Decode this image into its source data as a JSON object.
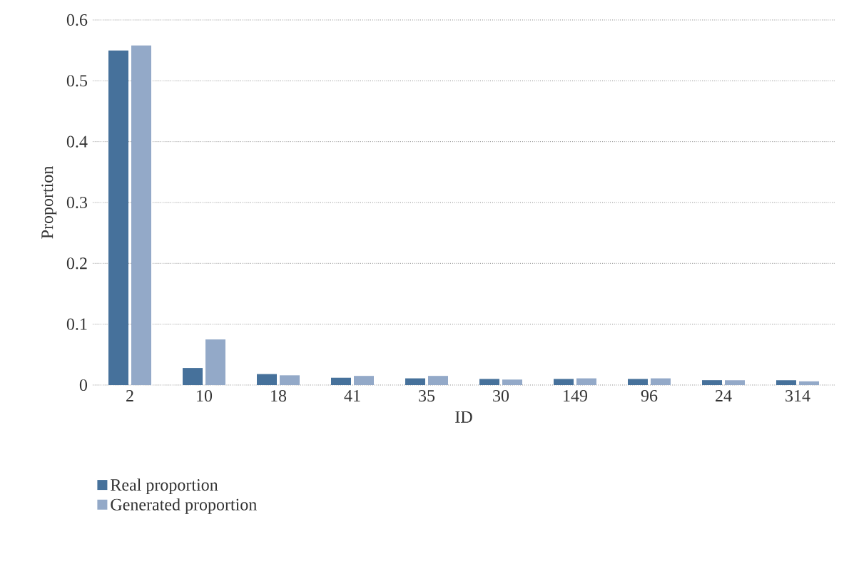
{
  "chart_data": {
    "type": "bar",
    "xlabel": "ID",
    "ylabel": "Proportion",
    "categories": [
      "2",
      "10",
      "18",
      "41",
      "35",
      "30",
      "149",
      "96",
      "24",
      "314"
    ],
    "series": [
      {
        "name": "Real proportion",
        "color": "#46719b",
        "values": [
          0.55,
          0.028,
          0.018,
          0.012,
          0.011,
          0.01,
          0.01,
          0.01,
          0.008,
          0.008
        ]
      },
      {
        "name": "Generated proportion",
        "color": "#93a9c8",
        "values": [
          0.558,
          0.075,
          0.016,
          0.015,
          0.015,
          0.009,
          0.011,
          0.011,
          0.008,
          0.006
        ]
      }
    ],
    "ylim": [
      0,
      0.6
    ],
    "yticks": [
      0,
      0.1,
      0.2,
      0.3,
      0.4,
      0.5,
      0.6
    ],
    "grid": "y",
    "legend": "bottom left"
  }
}
